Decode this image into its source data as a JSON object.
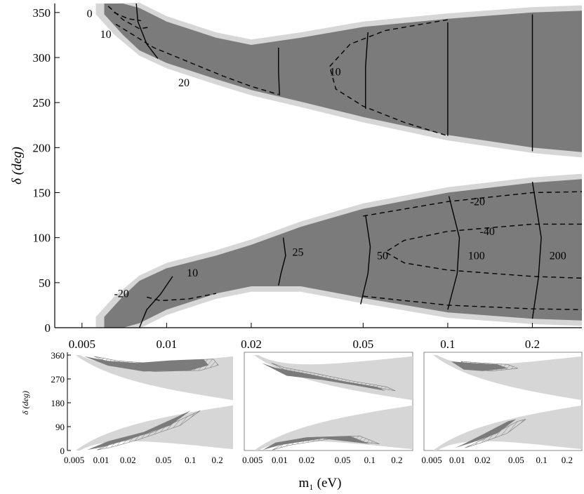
{
  "chart_data": [
    {
      "type": "area",
      "xlabel": "m₁ (eV)",
      "ylabel": "δ (deg)",
      "x_scale": "log",
      "xlim": [
        0.004,
        0.3
      ],
      "ylim": [
        0,
        360
      ],
      "xticks": [
        "0.005",
        "0.01",
        "0.02",
        "0.05",
        "0.1",
        "0.2"
      ],
      "yticks": [
        "0",
        "50",
        "100",
        "150",
        "200",
        "250",
        "300",
        "350"
      ],
      "regions": {
        "upper_band": {
          "m1": [
            0.006,
            0.0065,
            0.007,
            0.008,
            0.01,
            0.015,
            0.02,
            0.03,
            0.05,
            0.1,
            0.2,
            0.3
          ],
          "lower_delta": [
            348,
            336,
            325,
            308,
            294,
            276,
            264,
            251,
            234,
            214,
            200,
            195
          ],
          "upper_delta": [
            360,
            360,
            360,
            355,
            340,
            322,
            314,
            322,
            334,
            343,
            350,
            352
          ]
        },
        "lower_band": {
          "m1": [
            0.006,
            0.0065,
            0.007,
            0.008,
            0.01,
            0.015,
            0.02,
            0.03,
            0.05,
            0.1,
            0.2,
            0.3
          ],
          "lower_delta": [
            0,
            0,
            0,
            5,
            20,
            38,
            46,
            46,
            33,
            17,
            10,
            8
          ],
          "upper_delta": [
            12,
            24,
            35,
            52,
            66,
            80,
            92,
            112,
            132,
            150,
            161,
            165
          ]
        }
      },
      "contours": [
        {
          "label": "0",
          "style": "dashed",
          "points": [
            [
              0.0065,
              350
            ],
            [
              0.0073,
              343
            ],
            [
              0.0081,
              341
            ]
          ]
        },
        {
          "label": "10",
          "style": "dashed",
          "points": [
            [
              0.0062,
              357
            ],
            [
              0.007,
              342
            ],
            [
              0.008,
              332
            ],
            [
              0.0088,
              334
            ]
          ]
        },
        {
          "label": "20",
          "style": "dashed",
          "points": [
            [
              0.0066,
              337
            ],
            [
              0.009,
              311
            ],
            [
              0.012,
              295
            ],
            [
              0.016,
              279
            ],
            [
              0.02,
              268
            ],
            [
              0.025,
              259
            ]
          ]
        },
        {
          "label": "10",
          "style": "dashed",
          "points": [
            [
              0.1,
              342
            ],
            [
              0.06,
              330
            ],
            [
              0.045,
              315
            ],
            [
              0.038,
              290
            ],
            [
              0.04,
              265
            ],
            [
              0.05,
              246
            ],
            [
              0.07,
              228
            ],
            [
              0.1,
              213
            ]
          ]
        },
        {
          "label": "",
          "style": "solid",
          "points": [
            [
              0.0078,
              360
            ],
            [
              0.0079,
              340
            ],
            [
              0.0085,
              315
            ],
            [
              0.0093,
              299
            ]
          ]
        },
        {
          "label": "",
          "style": "solid",
          "points": [
            [
              0.025,
              311
            ],
            [
              0.025,
              285
            ],
            [
              0.0252,
              258
            ]
          ]
        },
        {
          "label": "",
          "style": "solid",
          "points": [
            [
              0.052,
              328
            ],
            [
              0.051,
              290
            ],
            [
              0.051,
              243
            ]
          ]
        },
        {
          "label": "",
          "style": "solid",
          "points": [
            [
              0.1,
              339
            ],
            [
              0.1,
              280
            ],
            [
              0.1,
              213
            ]
          ]
        },
        {
          "label": "",
          "style": "solid",
          "points": [
            [
              0.2,
              348
            ],
            [
              0.2,
              280
            ],
            [
              0.2,
              196
            ]
          ]
        },
        {
          "label": "-20",
          "style": "dashed",
          "points": [
            [
              0.0085,
              34
            ],
            [
              0.0095,
              30
            ],
            [
              0.012,
              32
            ],
            [
              0.015,
              38
            ]
          ]
        },
        {
          "label": "-20",
          "style": "dashed",
          "points": [
            [
              0.05,
              124
            ],
            [
              0.1,
              140
            ],
            [
              0.2,
              150
            ],
            [
              0.3,
              151
            ]
          ]
        },
        {
          "label": "-40",
          "style": "dashed",
          "points": [
            [
              0.3,
              115
            ],
            [
              0.2,
              115
            ],
            [
              0.1,
              107
            ],
            [
              0.07,
              97
            ],
            [
              0.06,
              84
            ],
            [
              0.07,
              72
            ],
            [
              0.1,
              64
            ],
            [
              0.2,
              57
            ],
            [
              0.3,
              55
            ]
          ]
        },
        {
          "label": "-20",
          "style": "dashed",
          "points": [
            [
              0.05,
              35
            ],
            [
              0.1,
              25
            ],
            [
              0.2,
              21
            ],
            [
              0.3,
              20
            ]
          ]
        },
        {
          "label": "10",
          "style": "solid",
          "points": [
            [
              0.008,
              0
            ],
            [
              0.0085,
              20
            ],
            [
              0.0095,
              37
            ],
            [
              0.0105,
              57
            ]
          ]
        },
        {
          "label": "25",
          "style": "solid",
          "points": [
            [
              0.025,
              47
            ],
            [
              0.0255,
              60
            ],
            [
              0.0265,
              80
            ],
            [
              0.026,
              100
            ]
          ]
        },
        {
          "label": "50",
          "style": "solid",
          "points": [
            [
              0.049,
              26
            ],
            [
              0.052,
              60
            ],
            [
              0.053,
              90
            ],
            [
              0.051,
              125
            ]
          ]
        },
        {
          "label": "100",
          "style": "solid",
          "points": [
            [
              0.1,
              20
            ],
            [
              0.108,
              60
            ],
            [
              0.11,
              100
            ],
            [
              0.101,
              146
            ]
          ]
        },
        {
          "label": "200",
          "style": "solid",
          "points": [
            [
              0.2,
              10
            ],
            [
              0.21,
              55
            ],
            [
              0.215,
              100
            ],
            [
              0.2,
              162
            ]
          ]
        }
      ]
    },
    {
      "type": "area",
      "ylabel": "δ (deg)",
      "x_scale": "log",
      "xticks": [
        "0.005",
        "0.01",
        "0.02",
        "0.05",
        "0.1",
        "0.2"
      ],
      "yticks": [
        "0",
        "90",
        "180",
        "270",
        "360"
      ]
    },
    {
      "type": "area",
      "x_scale": "log",
      "xticks": [
        "0.005",
        "0.01",
        "0.02",
        "0.05",
        "0.1",
        "0.2"
      ]
    },
    {
      "type": "area",
      "x_scale": "log",
      "xticks": [
        "0.005",
        "0.01",
        "0.02",
        "0.05",
        "0.1",
        "0.2"
      ]
    }
  ],
  "colors": {
    "allowed_light": "#d6d6d6",
    "allowed_dark": "#7b7b7b",
    "axis": "#000000"
  }
}
